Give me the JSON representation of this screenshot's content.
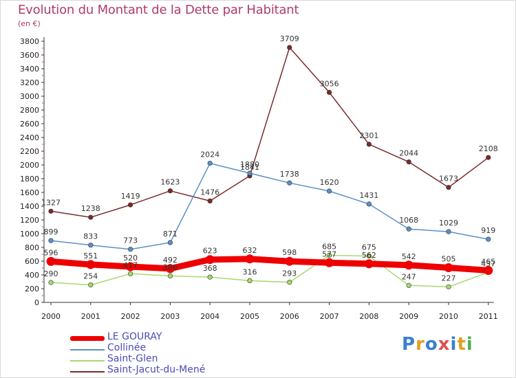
{
  "title": "Evolution du Montant de la Dette par Habitant",
  "unit": "(en €)",
  "logo": "Proxiti",
  "chart_data": {
    "type": "line",
    "x": [
      "2000",
      "2001",
      "2002",
      "2003",
      "2004",
      "2005",
      "2006",
      "2007",
      "2008",
      "2009",
      "2010",
      "2011"
    ],
    "ylim": [
      0,
      3800
    ],
    "yticks": [
      0,
      200,
      400,
      600,
      800,
      1000,
      1200,
      1400,
      1600,
      1800,
      2000,
      2200,
      2400,
      2600,
      2800,
      3000,
      3200,
      3400,
      3600,
      3800
    ],
    "grid": false,
    "legend_position": "bottom-left",
    "series": [
      {
        "name": "LE GOURAY",
        "color": "#ee0000",
        "values": [
          596,
          551,
          520,
          492,
          623,
          632,
          598,
          577,
          562,
          542,
          505,
          465
        ]
      },
      {
        "name": "Collinée",
        "color": "#5b8fc7",
        "values": [
          899,
          833,
          773,
          871,
          2024,
          1880,
          1738,
          1620,
          1431,
          1068,
          1029,
          919
        ]
      },
      {
        "name": "Saint-Glen",
        "color": "#a6d86e",
        "values": [
          290,
          254,
          417,
          386,
          368,
          316,
          293,
          685,
          675,
          247,
          227,
          437
        ]
      },
      {
        "name": "Saint-Jacut-du-Mené",
        "color": "#7a2a2a",
        "values": [
          1327,
          1238,
          1419,
          1623,
          1476,
          1841,
          3709,
          3056,
          2301,
          2044,
          1673,
          2108
        ]
      }
    ]
  }
}
